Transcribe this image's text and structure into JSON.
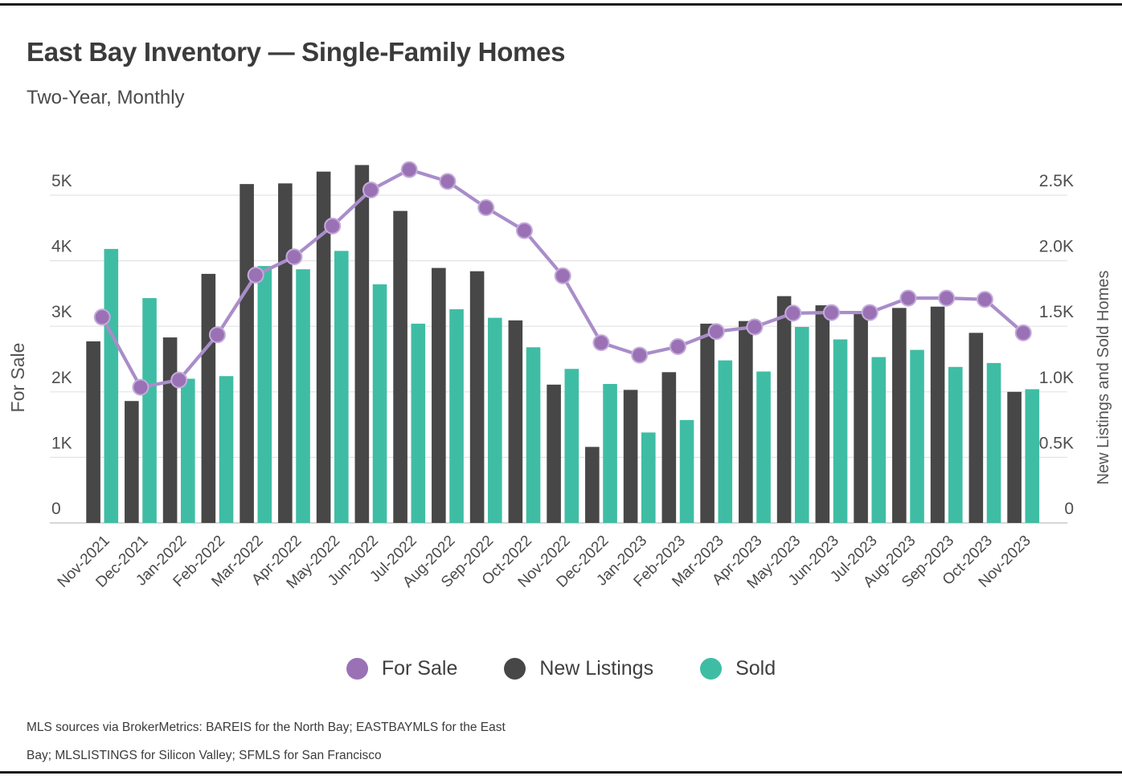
{
  "page": {
    "title": "East Bay Inventory — Single-Family Homes",
    "subtitle": "Two-Year, Monthly"
  },
  "chart_data": {
    "type": "combo",
    "categories": [
      "Nov-2021",
      "Dec-2021",
      "Jan-2022",
      "Feb-2022",
      "Mar-2022",
      "Apr-2022",
      "May-2022",
      "Jun-2022",
      "Jul-2022",
      "Aug-2022",
      "Sep-2022",
      "Oct-2022",
      "Nov-2022",
      "Dec-2022",
      "Jan-2023",
      "Feb-2023",
      "Mar-2023",
      "Apr-2023",
      "May-2023",
      "Jun-2023",
      "Jul-2023",
      "Aug-2023",
      "Sep-2023",
      "Oct-2023",
      "Nov-2023"
    ],
    "series": [
      {
        "name": "For Sale",
        "type": "line",
        "axis": "left",
        "color": "#a98dc9",
        "marker_color": "#9b71b5",
        "values": [
          3140,
          2070,
          2180,
          2870,
          3780,
          4060,
          4530,
          5080,
          5390,
          5210,
          4810,
          4460,
          3770,
          2750,
          2560,
          2690,
          2920,
          2990,
          3200,
          3210,
          3210,
          3430,
          3430,
          3410,
          2900
        ]
      },
      {
        "name": "New Listings",
        "type": "bar",
        "axis": "right",
        "color": "#474747",
        "values": [
          1385,
          930,
          1415,
          1900,
          2585,
          2590,
          2680,
          2730,
          2380,
          1945,
          1920,
          1545,
          1055,
          580,
          1015,
          1150,
          1520,
          1540,
          1730,
          1660,
          1600,
          1640,
          1650,
          1450,
          1000
        ]
      },
      {
        "name": "Sold",
        "type": "bar",
        "axis": "right",
        "color": "#3fbda4",
        "values": [
          2090,
          1715,
          1100,
          1120,
          1960,
          1935,
          2075,
          1820,
          1520,
          1630,
          1565,
          1340,
          1175,
          1060,
          690,
          785,
          1240,
          1155,
          1495,
          1400,
          1265,
          1320,
          1190,
          1220,
          1020
        ]
      }
    ],
    "left_axis": {
      "title": "For Sale",
      "min": 0,
      "max": 5000,
      "tick_labels": [
        "0",
        "1K",
        "2K",
        "3K",
        "4K",
        "5K"
      ]
    },
    "right_axis": {
      "title": "New Listings and Sold Homes",
      "min": 0,
      "max": 2500,
      "tick_labels": [
        "0",
        "0.5K",
        "1.0K",
        "1.5K",
        "2.0K",
        "2.5K"
      ]
    },
    "grid": true,
    "legend_position": "bottom"
  },
  "footer": {
    "line1": "MLS sources via BrokerMetrics: BAREIS for the North Bay; EASTBAYMLS for the East",
    "line2": "Bay; MLSLISTINGS for Silicon Valley; SFMLS for San Francisco"
  }
}
